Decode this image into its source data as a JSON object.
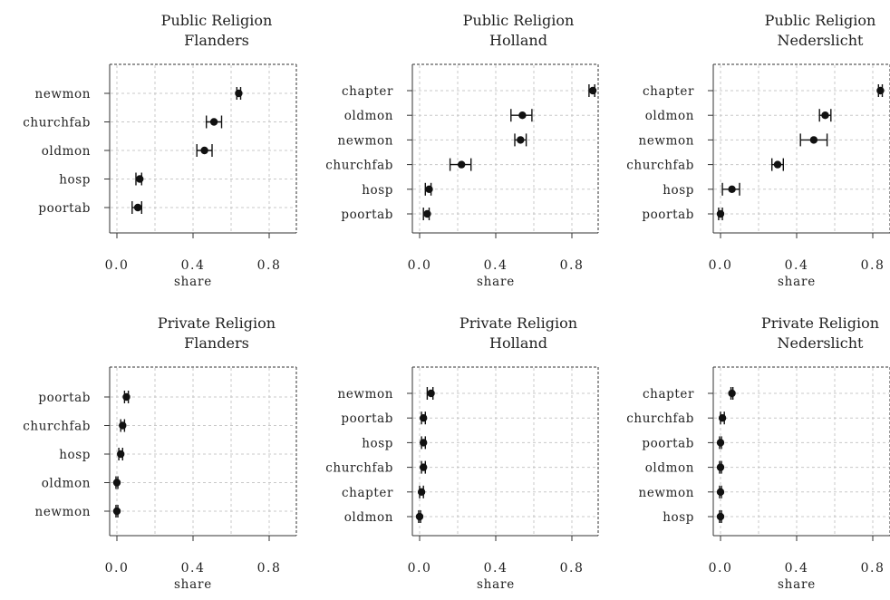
{
  "chart_data": [
    {
      "type": "scatter",
      "title": [
        "Public Religion",
        "Flanders"
      ],
      "xlabel": "share",
      "xlim": [
        0,
        0.9
      ],
      "xticks": [
        "0.0",
        "0.4",
        "0.8"
      ],
      "grid": true,
      "categories": [
        "newmon",
        "churchfab",
        "oldmon",
        "hosp",
        "poortab"
      ],
      "estimates": [
        0.64,
        0.51,
        0.46,
        0.12,
        0.11
      ],
      "ci_low": [
        0.63,
        0.47,
        0.42,
        0.1,
        0.08
      ],
      "ci_high": [
        0.65,
        0.55,
        0.5,
        0.13,
        0.13
      ]
    },
    {
      "type": "scatter",
      "title": [
        "Public Religion",
        "Holland"
      ],
      "xlabel": "share",
      "xlim": [
        0,
        0.9
      ],
      "xticks": [
        "0.0",
        "0.4",
        "0.8"
      ],
      "grid": true,
      "categories": [
        "chapter",
        "oldmon",
        "newmon",
        "churchfab",
        "hosp",
        "poortab"
      ],
      "estimates": [
        0.91,
        0.54,
        0.53,
        0.22,
        0.05,
        0.04
      ],
      "ci_low": [
        0.89,
        0.48,
        0.5,
        0.16,
        0.03,
        0.02
      ],
      "ci_high": [
        0.92,
        0.59,
        0.56,
        0.27,
        0.06,
        0.05
      ]
    },
    {
      "type": "scatter",
      "title": [
        "Public Religion",
        "Nederslicht"
      ],
      "xlabel": "share",
      "xlim": [
        0,
        0.9
      ],
      "xticks": [
        "0.0",
        "0.4",
        "0.8"
      ],
      "grid": true,
      "categories": [
        "chapter",
        "oldmon",
        "newmon",
        "churchfab",
        "hosp",
        "poortab"
      ],
      "estimates": [
        0.84,
        0.55,
        0.49,
        0.3,
        0.06,
        0.0
      ],
      "ci_low": [
        0.83,
        0.52,
        0.42,
        0.27,
        0.01,
        -0.01
      ],
      "ci_high": [
        0.85,
        0.58,
        0.56,
        0.33,
        0.1,
        0.01
      ]
    },
    {
      "type": "scatter",
      "title": [
        "Private Religion",
        "Flanders"
      ],
      "xlabel": "share",
      "xlim": [
        0,
        0.9
      ],
      "xticks": [
        "0.0",
        "0.4",
        "0.8"
      ],
      "grid": true,
      "categories": [
        "poortab",
        "churchfab",
        "hosp",
        "oldmon",
        "newmon"
      ],
      "estimates": [
        0.05,
        0.03,
        0.02,
        0.0,
        0.0
      ],
      "ci_low": [
        0.04,
        0.02,
        0.01,
        -0.005,
        -0.005
      ],
      "ci_high": [
        0.06,
        0.04,
        0.03,
        0.005,
        0.005
      ]
    },
    {
      "type": "scatter",
      "title": [
        "Private Religion",
        "Holland"
      ],
      "xlabel": "share",
      "xlim": [
        0,
        0.9
      ],
      "xticks": [
        "0.0",
        "0.4",
        "0.8"
      ],
      "grid": true,
      "categories": [
        "newmon",
        "poortab",
        "hosp",
        "churchfab",
        "chapter",
        "oldmon"
      ],
      "estimates": [
        0.06,
        0.02,
        0.02,
        0.02,
        0.01,
        0.0
      ],
      "ci_low": [
        0.04,
        0.01,
        0.01,
        0.01,
        0.0,
        -0.005
      ],
      "ci_high": [
        0.07,
        0.03,
        0.03,
        0.03,
        0.02,
        0.005
      ]
    },
    {
      "type": "scatter",
      "title": [
        "Private Religion",
        "Nederslicht"
      ],
      "xlabel": "share",
      "xlim": [
        0,
        0.9
      ],
      "xticks": [
        "0.0",
        "0.4",
        "0.8"
      ],
      "grid": true,
      "categories": [
        "chapter",
        "churchfab",
        "poortab",
        "oldmon",
        "newmon",
        "hosp"
      ],
      "estimates": [
        0.06,
        0.01,
        0.0,
        0.0,
        0.0,
        0.0
      ],
      "ci_low": [
        0.055,
        0.0,
        -0.005,
        -0.005,
        -0.005,
        -0.005
      ],
      "ci_high": [
        0.065,
        0.02,
        0.005,
        0.005,
        0.005,
        0.005
      ]
    }
  ],
  "colors": {
    "ink": "#111111",
    "text": "#222222",
    "grid": "#c8c8c8",
    "frame": "#333333"
  }
}
